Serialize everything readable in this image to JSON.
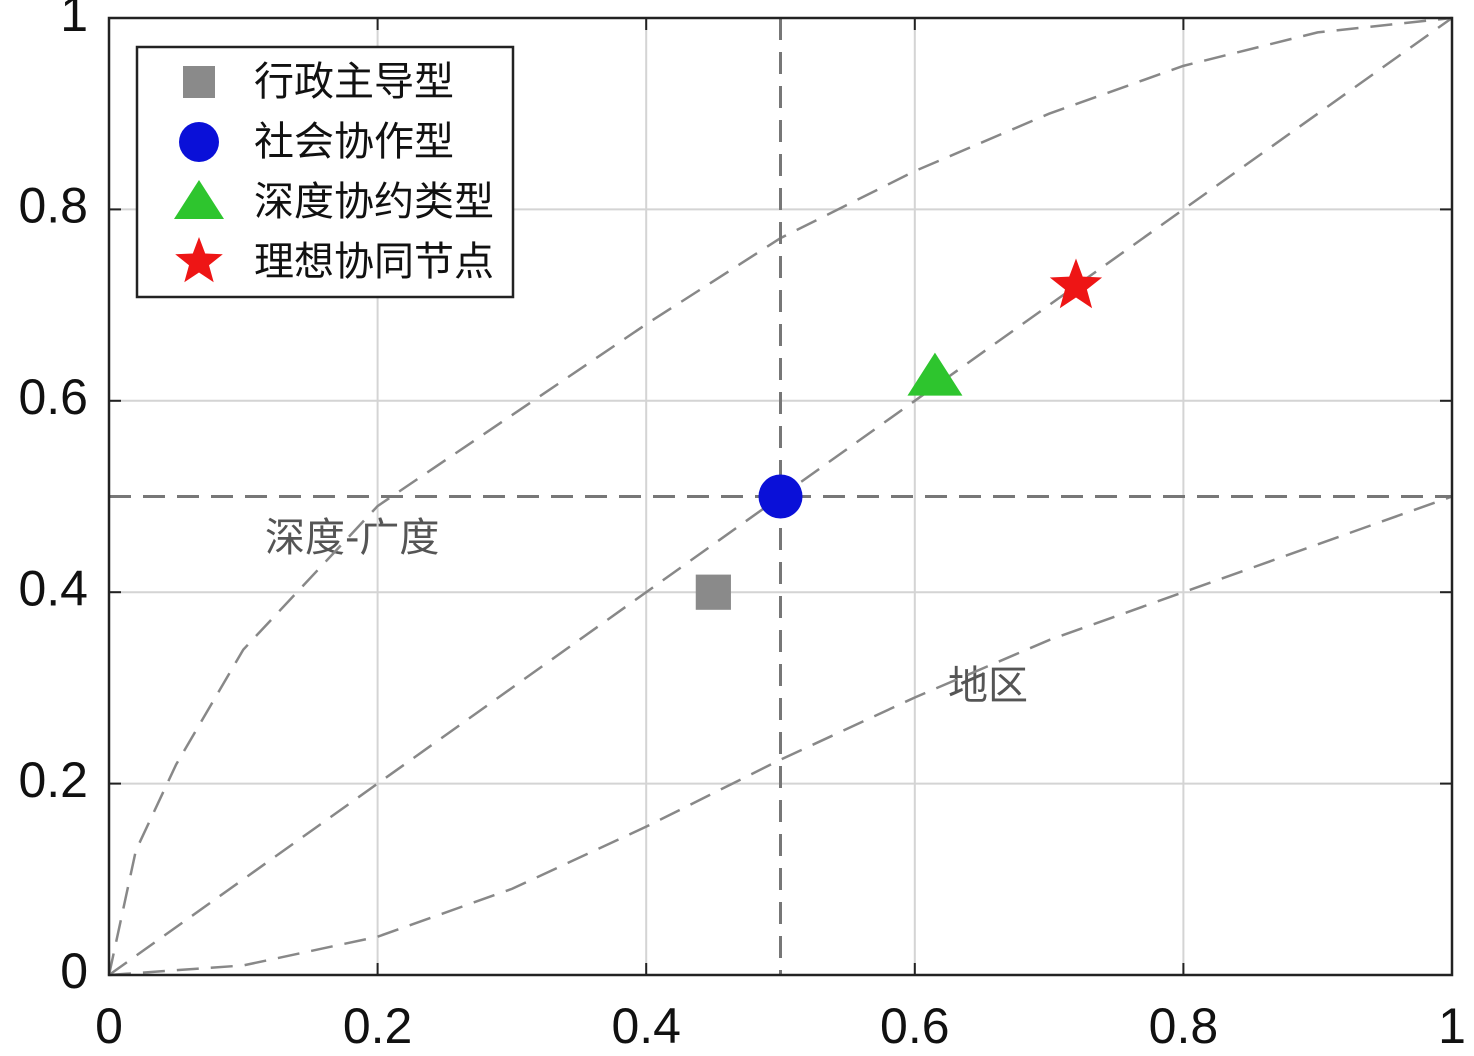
{
  "chart_data": {
    "type": "scatter",
    "xlim": [
      0,
      1
    ],
    "ylim": [
      0,
      1
    ],
    "xticks": [
      0,
      0.2,
      0.4,
      0.6,
      0.8,
      1
    ],
    "yticks": [
      0,
      0.2,
      0.4,
      0.6,
      0.8,
      1
    ],
    "grid": true,
    "legend": "upper left",
    "series": [
      {
        "name": "行政主导型",
        "color": "#8a8a8a",
        "marker": "square",
        "x": [
          0.45
        ],
        "values": [
          0.4
        ]
      },
      {
        "name": "社会协作型",
        "color": "#0a10d8",
        "marker": "circle",
        "x": [
          0.5
        ],
        "values": [
          0.5
        ]
      },
      {
        "name": "深度协约类型",
        "color": "#2ec52e",
        "marker": "triangle",
        "x": [
          0.615
        ],
        "values": [
          0.625
        ]
      },
      {
        "name": "理想协同节点",
        "color": "#ee1515",
        "marker": "star",
        "x": [
          0.72
        ],
        "values": [
          0.72
        ]
      }
    ],
    "reference_curves": [
      {
        "x": [
          0,
          0.02,
          0.05,
          0.1,
          0.2,
          0.3,
          0.4,
          0.5,
          0.6,
          0.7,
          0.8,
          0.9,
          1
        ],
        "values": [
          0,
          0.13,
          0.22,
          0.34,
          0.49,
          0.585,
          0.68,
          0.77,
          0.84,
          0.9,
          0.95,
          0.985,
          1
        ]
      },
      {
        "x": [
          0,
          1
        ],
        "values": [
          0,
          1
        ]
      },
      {
        "x": [
          0,
          0.1,
          0.2,
          0.3,
          0.4,
          0.5,
          0.6,
          0.7,
          0.8,
          0.9,
          1
        ],
        "values": [
          0,
          0.01,
          0.04,
          0.09,
          0.155,
          0.225,
          0.29,
          0.35,
          0.4,
          0.45,
          0.5
        ]
      }
    ],
    "vlines": [
      0.5
    ],
    "hlines": [
      0.5
    ],
    "annotations": [
      "深度-广度",
      "地区"
    ]
  }
}
